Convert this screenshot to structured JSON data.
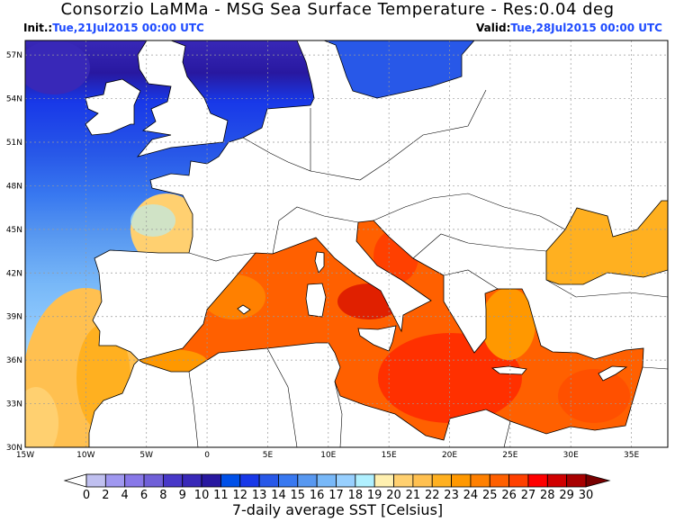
{
  "header": {
    "title": "Consorzio LaMMa -  MSG Sea Surface Temperature - Res:0.04 deg",
    "init_label": "Init.:",
    "init_value": "Tue,21Jul2015 00:00 UTC",
    "valid_label": "Valid:",
    "valid_value": "Tue,28Jul2015 00:00 UTC"
  },
  "map": {
    "lon_range": [
      -15,
      38
    ],
    "lat_range": [
      30,
      58
    ],
    "lon_labels": [
      "15W",
      "10W",
      "5W",
      "0",
      "5E",
      "10E",
      "15E",
      "20E",
      "25E",
      "30E",
      "35E"
    ],
    "lat_labels": [
      "30N",
      "33N",
      "36N",
      "39N",
      "42N",
      "45N",
      "48N",
      "51N",
      "54N",
      "57N"
    ],
    "grid": true,
    "land_color": "#ffffff"
  },
  "colorbar": {
    "label": "7-daily average SST [Celsius]",
    "ticks": [
      "0",
      "2",
      "4",
      "6",
      "8",
      "9",
      "10",
      "11",
      "12",
      "13",
      "14",
      "15",
      "16",
      "17",
      "18",
      "19",
      "20",
      "21",
      "22",
      "23",
      "24",
      "25",
      "26",
      "27",
      "28",
      "29",
      "30"
    ],
    "colors": [
      "#c0c0f0",
      "#a098f0",
      "#8878e8",
      "#7060d8",
      "#4838c8",
      "#3828b8",
      "#2818a0",
      "#0050e8",
      "#1838e8",
      "#2858e8",
      "#3878f0",
      "#5898f0",
      "#78b8f8",
      "#98d0ff",
      "#b0f0ff",
      "#fff0b0",
      "#ffd070",
      "#ffc050",
      "#ffb020",
      "#ff9800",
      "#ff8000",
      "#ff6000",
      "#ff4000",
      "#ff0000",
      "#d00000",
      "#a80000"
    ],
    "under_color": "#ffffff",
    "over_color": "#780000"
  }
}
